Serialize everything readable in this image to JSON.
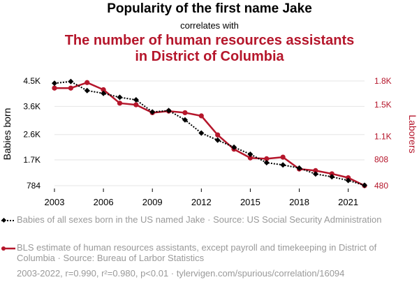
{
  "header": {
    "title": "Popularity of the first name Jake",
    "connector": "correlates with",
    "title2_line1": "The number of human resources assistants",
    "title2_line2": "in District of Columbia"
  },
  "legend": {
    "series1": "Babies of all sexes born in the US named Jake · Source: US Social Security Administration",
    "series2": "BLS estimate of human resources assistants, except payroll and timekeeping in District of Columbia · Source: Bureau of Larbor Statistics"
  },
  "footer": "2003-2022, r=0.990, r²=0.980, p<0.01 · tylervigen.com/spurious/correlation/16094",
  "colors": {
    "series1": "#000000",
    "series2": "#b5162b"
  },
  "chart_data": {
    "type": "line",
    "x": [
      2003,
      2004,
      2005,
      2006,
      2007,
      2008,
      2009,
      2010,
      2011,
      2012,
      2013,
      2014,
      2015,
      2016,
      2017,
      2018,
      2019,
      2020,
      2021,
      2022
    ],
    "xticks": [
      2003,
      2006,
      2009,
      2012,
      2015,
      2018,
      2021
    ],
    "ylabel_left": "Babies born",
    "ylabel_right": "Laborers",
    "yticks_left": {
      "values": [
        784,
        1700,
        2600,
        3600,
        4500
      ],
      "labels": [
        "784",
        "1.7K",
        "2.6K",
        "3.6K",
        "4.5K"
      ]
    },
    "yticks_right": {
      "values": [
        480,
        808,
        1100,
        1500,
        1800
      ],
      "labels": [
        "480",
        "808",
        "1.1K",
        "1.5K",
        "1.8K"
      ]
    },
    "ylim_left": [
      784,
      4500
    ],
    "ylim_right": [
      480,
      1800
    ],
    "grid": true,
    "series": [
      {
        "axis": "left",
        "values": [
          4420,
          4480,
          4160,
          4060,
          3920,
          3830,
          3400,
          3450,
          3120,
          2650,
          2400,
          2150,
          1900,
          1600,
          1520,
          1410,
          1200,
          1100,
          970,
          800
        ]
      },
      {
        "axis": "right",
        "values": [
          1710,
          1710,
          1780,
          1690,
          1520,
          1500,
          1400,
          1420,
          1400,
          1360,
          1120,
          940,
          830,
          820,
          840,
          690,
          670,
          630,
          580,
          480
        ]
      }
    ]
  }
}
